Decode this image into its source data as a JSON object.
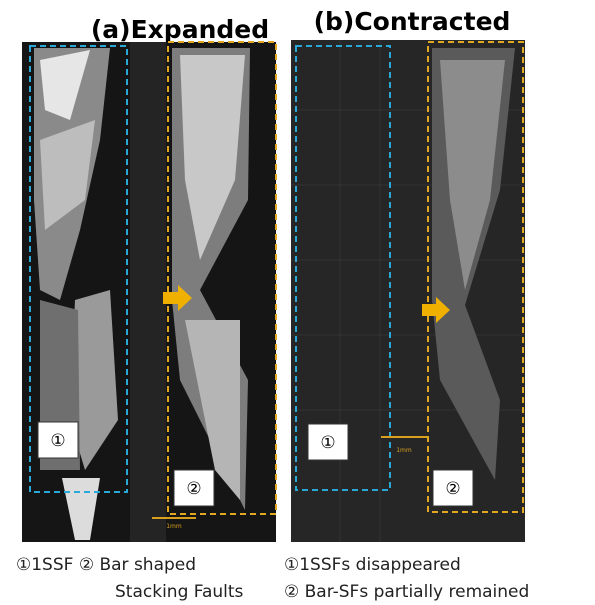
{
  "panels": [
    {
      "title": "(a)Expanded",
      "labels": [
        "①",
        "②"
      ],
      "scale": "1mm",
      "caption": [
        "①1SSF ② Bar shaped",
        "Stacking Faults"
      ]
    },
    {
      "title": "(b)Contracted",
      "labels": [
        "①",
        "②"
      ],
      "scale": "1mm",
      "caption": [
        "①1SSFs disappeared",
        "② Bar-SFs partially remained"
      ]
    }
  ]
}
